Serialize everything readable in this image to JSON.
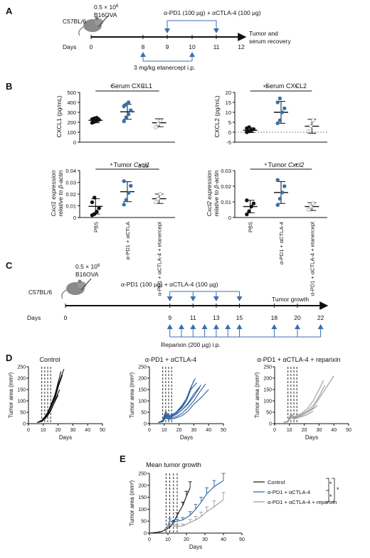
{
  "panel_labels": [
    "A",
    "B",
    "C",
    "D",
    "E"
  ],
  "panelA": {
    "strain": "C57BL/6",
    "dose": "0.5 × 10",
    "dose_exp": "6",
    "cell_line": "B16OVA",
    "treatment": "α-PD1 (100 µg) + αCTLA-4 (100 µg)",
    "outcome_line1": "Tumor and",
    "outcome_line2": "serum recovery",
    "days_label": "Days",
    "ticks": [
      "0",
      "8",
      "9",
      "10",
      "11",
      "12"
    ],
    "etanercept": "3 mg/kg etanercept i.p."
  },
  "panelC": {
    "strain": "C57BL/6",
    "dose": "0.5 × 10",
    "dose_exp": "6",
    "cell_line": "B16OVA",
    "treatment": "α-PD1 (100 µg) + αCTLA-4 (100 µg)",
    "outcome": "Tumor growth",
    "days_label": "Days",
    "ticks": [
      "0",
      "9",
      "11",
      "13",
      "15",
      "18",
      "20",
      "22"
    ],
    "reparixin": "Reparixin (200 µg) i.p."
  },
  "panelD_titles": [
    "Control",
    "α-PD1 + αCTLA-4",
    "α-PD1 + αCTLA-4 + reparixin"
  ],
  "colors": {
    "control": "#111111",
    "treated": "#2e5fa3",
    "reparixin": "#9a9a9a",
    "dot_blue": "#3a6fb0"
  },
  "chart_data": [
    {
      "type": "scatter",
      "title": "Serum CXCL1",
      "ylabel": "CXCL1 (pg/mL)",
      "ylim": [
        0,
        500
      ],
      "yticks": [
        "0",
        "100",
        "200",
        "300",
        "400",
        "500"
      ],
      "groups": [
        {
          "name": "PBS",
          "mean": 220,
          "sd": 25,
          "points": [
            195,
            205,
            215,
            225,
            230,
            240,
            245
          ]
        },
        {
          "name": "α-PD1 + αCTLA-4",
          "mean": 305,
          "sd": 75,
          "points": [
            210,
            250,
            280,
            320,
            360,
            380,
            400
          ]
        },
        {
          "name": "α-PD1 + αCTLA-4 + etanercept",
          "mean": 195,
          "sd": 40,
          "points": [
            150,
            185,
            215
          ]
        }
      ],
      "significance": [
        "*",
        "*"
      ]
    },
    {
      "type": "scatter",
      "title": "Serum CXCL2",
      "ylabel": "CXCL2 (pg/mL)",
      "ylim": [
        -5,
        20
      ],
      "yticks": [
        "-5",
        "0",
        "5",
        "10",
        "15",
        "20"
      ],
      "groups": [
        {
          "name": "PBS",
          "mean": 1,
          "sd": 1.2,
          "points": [
            0,
            0.5,
            1,
            1.5,
            2,
            2.5,
            1
          ]
        },
        {
          "name": "α-PD1 + αCTLA-4",
          "mean": 10,
          "sd": 5.5,
          "points": [
            4.5,
            6,
            10,
            12,
            15,
            17
          ]
        },
        {
          "name": "α-PD1 + αCTLA-4 + etanercept",
          "mean": 3,
          "sd": 3.5,
          "points": [
            0.5,
            3,
            6
          ]
        }
      ],
      "significance": [
        "**",
        "*"
      ]
    },
    {
      "type": "scatter",
      "title": "Tumor Cxcl1",
      "ylabel_line1": "Cxcl1 expression",
      "ylabel_line2": "relative to β-actin",
      "ylim": [
        0,
        0.04
      ],
      "yticks": [
        "0",
        "0.01",
        "0.02",
        "0.03",
        "0.04"
      ],
      "xticklabels": [
        "PBS",
        "α-PD1 + αCTLA",
        "α-PD1 + αCTLA-4 + etanercept"
      ],
      "groups": [
        {
          "name": "PBS",
          "mean": 0.0095,
          "sd": 0.0065,
          "points": [
            0.002,
            0.003,
            0.005,
            0.008,
            0.013,
            0.017
          ]
        },
        {
          "name": "α-PD1 + αCTLA",
          "mean": 0.022,
          "sd": 0.0085,
          "points": [
            0.011,
            0.015,
            0.021,
            0.027,
            0.031
          ]
        },
        {
          "name": "α-PD1 + αCTLA-4 + etanercept",
          "mean": 0.016,
          "sd": 0.004,
          "points": [
            0.013,
            0.016,
            0.02
          ]
        }
      ],
      "significance": [
        "*",
        "0.16"
      ]
    },
    {
      "type": "scatter",
      "title": "Tumor Cxcl2",
      "ylabel_line1": "Cxcl2 expression",
      "ylabel_line2": "relative to β-actin",
      "ylim": [
        0,
        0.03
      ],
      "yticks": [
        "0",
        "0.01",
        "0.02",
        "0.03"
      ],
      "xticklabels": [
        "PBS",
        "α-PD1 + αCTLA-4",
        "α-PD1 + αCTLA-4 + etanercept"
      ],
      "groups": [
        {
          "name": "PBS",
          "mean": 0.007,
          "sd": 0.004,
          "points": [
            0.002,
            0.004,
            0.007,
            0.009,
            0.011
          ]
        },
        {
          "name": "α-PD1 + αCTLA-4",
          "mean": 0.016,
          "sd": 0.007,
          "points": [
            0.008,
            0.012,
            0.016,
            0.02,
            0.024
          ]
        },
        {
          "name": "α-PD1 + αCTLA-4 + etanercept",
          "mean": 0.007,
          "sd": 0.0025,
          "points": [
            0.005,
            0.007,
            0.009
          ]
        }
      ],
      "significance": [
        "*",
        "*"
      ]
    },
    {
      "type": "line",
      "title": "Control",
      "xlabel": "Days",
      "ylabel": "Tumor area (mm²)",
      "xlim": [
        0,
        50
      ],
      "ylim": [
        0,
        250
      ],
      "xticks": [
        "0",
        "10",
        "20",
        "30",
        "40",
        "50"
      ],
      "yticks": [
        "0",
        "50",
        "100",
        "150",
        "200",
        "250"
      ],
      "vlines": [
        9,
        11,
        13,
        15
      ],
      "series": [
        {
          "x": [
            6,
            9,
            11,
            13,
            15,
            18,
            20,
            22
          ],
          "y": [
            5,
            15,
            30,
            50,
            80,
            130,
            180,
            230
          ]
        },
        {
          "x": [
            6,
            9,
            11,
            13,
            15,
            18,
            20,
            23
          ],
          "y": [
            5,
            12,
            25,
            45,
            70,
            110,
            160,
            215
          ]
        },
        {
          "x": [
            6,
            9,
            11,
            13,
            15,
            18,
            21
          ],
          "y": [
            5,
            10,
            22,
            40,
            60,
            100,
            150
          ]
        },
        {
          "x": [
            6,
            9,
            11,
            13,
            15,
            18,
            20,
            24
          ],
          "y": [
            5,
            14,
            28,
            42,
            75,
            120,
            170,
            240
          ]
        },
        {
          "x": [
            6,
            9,
            11,
            13,
            15,
            17,
            20
          ],
          "y": [
            5,
            10,
            20,
            35,
            55,
            85,
            125
          ]
        },
        {
          "x": [
            6,
            9,
            11,
            13,
            16,
            19,
            22
          ],
          "y": [
            5,
            12,
            26,
            48,
            85,
            140,
            200
          ]
        }
      ]
    },
    {
      "type": "line",
      "title": "α-PD1 + αCTLA-4",
      "xlabel": "Days",
      "ylabel": "Tumor area (mm²)",
      "xlim": [
        0,
        50
      ],
      "ylim": [
        0,
        250
      ],
      "xticks": [
        "0",
        "10",
        "20",
        "30",
        "40",
        "50"
      ],
      "yticks": [
        "0",
        "50",
        "100",
        "150",
        "200",
        "250"
      ],
      "vlines": [
        9,
        11,
        13,
        15
      ],
      "series": [
        {
          "x": [
            6,
            9,
            11,
            13,
            15,
            18,
            22,
            25,
            28,
            31
          ],
          "y": [
            5,
            15,
            55,
            35,
            40,
            50,
            80,
            110,
            160,
            200
          ]
        },
        {
          "x": [
            6,
            9,
            11,
            13,
            15,
            18,
            22,
            25,
            28,
            32
          ],
          "y": [
            5,
            12,
            40,
            30,
            35,
            45,
            70,
            100,
            150,
            180
          ]
        },
        {
          "x": [
            6,
            9,
            11,
            13,
            15,
            18,
            22,
            26,
            30,
            35
          ],
          "y": [
            5,
            10,
            35,
            25,
            30,
            40,
            60,
            90,
            130,
            170
          ]
        },
        {
          "x": [
            6,
            9,
            11,
            13,
            15,
            18,
            22,
            26,
            30,
            34,
            38
          ],
          "y": [
            5,
            10,
            30,
            20,
            25,
            30,
            45,
            70,
            100,
            140,
            175
          ]
        },
        {
          "x": [
            6,
            9,
            11,
            13,
            15,
            18,
            22,
            26,
            30,
            35,
            40
          ],
          "y": [
            5,
            8,
            25,
            18,
            20,
            25,
            35,
            55,
            85,
            115,
            150
          ]
        },
        {
          "x": [
            6,
            9,
            11,
            13,
            15,
            18,
            22,
            26,
            30
          ],
          "y": [
            5,
            12,
            45,
            30,
            35,
            45,
            75,
            120,
            190
          ]
        },
        {
          "x": [
            6,
            9,
            11,
            13,
            15,
            18,
            22,
            26,
            30,
            34
          ],
          "y": [
            5,
            10,
            38,
            28,
            32,
            40,
            60,
            85,
            120,
            160
          ]
        }
      ]
    },
    {
      "type": "line",
      "title": "α-PD1 + αCTLA-4 + reparixin",
      "xlabel": "Days",
      "ylabel": "Tumor area (mm²)",
      "xlim": [
        0,
        50
      ],
      "ylim": [
        0,
        250
      ],
      "xticks": [
        "0",
        "10",
        "20",
        "30",
        "40",
        "50"
      ],
      "yticks": [
        "0",
        "50",
        "100",
        "150",
        "200",
        "250"
      ],
      "vlines": [
        9,
        11,
        13,
        15
      ],
      "series": [
        {
          "x": [
            6,
            9,
            11,
            13,
            15,
            18,
            22,
            26,
            30,
            33
          ],
          "y": [
            5,
            12,
            45,
            30,
            35,
            45,
            65,
            100,
            150,
            190
          ]
        },
        {
          "x": [
            6,
            9,
            11,
            13,
            15,
            18,
            22,
            26,
            30,
            35,
            40
          ],
          "y": [
            5,
            10,
            38,
            25,
            30,
            35,
            50,
            70,
            110,
            160,
            210
          ]
        },
        {
          "x": [
            6,
            9,
            11,
            13,
            15,
            18,
            22,
            26
          ],
          "y": [
            5,
            10,
            30,
            20,
            25,
            30,
            40,
            55
          ]
        },
        {
          "x": [
            6,
            9,
            11,
            13,
            15,
            18,
            22,
            26,
            29
          ],
          "y": [
            5,
            8,
            28,
            22,
            28,
            35,
            50,
            65,
            80
          ]
        },
        {
          "x": [
            6,
            9,
            11,
            13,
            15,
            18,
            22,
            26,
            30,
            34
          ],
          "y": [
            5,
            10,
            35,
            28,
            30,
            40,
            55,
            80,
            120,
            170
          ]
        }
      ]
    },
    {
      "type": "line",
      "title": "Mean tumor growth",
      "xlabel": "Days",
      "ylabel": "Tumor area (mm²)",
      "xlim": [
        0,
        50
      ],
      "ylim": [
        0,
        250
      ],
      "xticks": [
        "0",
        "10",
        "20",
        "30",
        "40",
        "50"
      ],
      "yticks": [
        "0",
        "50",
        "100",
        "150",
        "200",
        "250"
      ],
      "vlines": [
        9,
        11,
        13,
        15
      ],
      "series": [
        {
          "name": "Control",
          "x": [
            0,
            6,
            9,
            11,
            13,
            15,
            18,
            20,
            22
          ],
          "y": [
            0,
            5,
            15,
            25,
            45,
            75,
            115,
            155,
            190
          ],
          "err": [
            0,
            1,
            2,
            4,
            6,
            10,
            15,
            20,
            25
          ]
        },
        {
          "name": "α-PD1 + αCTLA-4",
          "x": [
            9,
            11,
            13,
            15,
            18,
            22,
            25,
            28,
            31,
            35,
            40
          ],
          "y": [
            15,
            50,
            45,
            50,
            55,
            75,
            100,
            130,
            165,
            195,
            220
          ],
          "err": [
            2,
            10,
            8,
            8,
            10,
            15,
            20,
            20,
            25,
            25,
            30
          ]
        },
        {
          "name": "α-PD1 + αCTLA-4 + reparixin",
          "x": [
            9,
            11,
            13,
            15,
            18,
            22,
            25,
            28,
            31,
            35,
            40
          ],
          "y": [
            15,
            40,
            30,
            28,
            30,
            45,
            55,
            70,
            90,
            110,
            140
          ],
          "err": [
            2,
            8,
            6,
            6,
            8,
            12,
            15,
            18,
            20,
            25,
            30
          ]
        }
      ],
      "legend": [
        "Control",
        "α-PD1 + αCTLA-4",
        "α-PD1 + αCTLA-4 + reparixin"
      ],
      "legend_position": "right",
      "significance": [
        "*",
        "*",
        "*"
      ]
    }
  ]
}
